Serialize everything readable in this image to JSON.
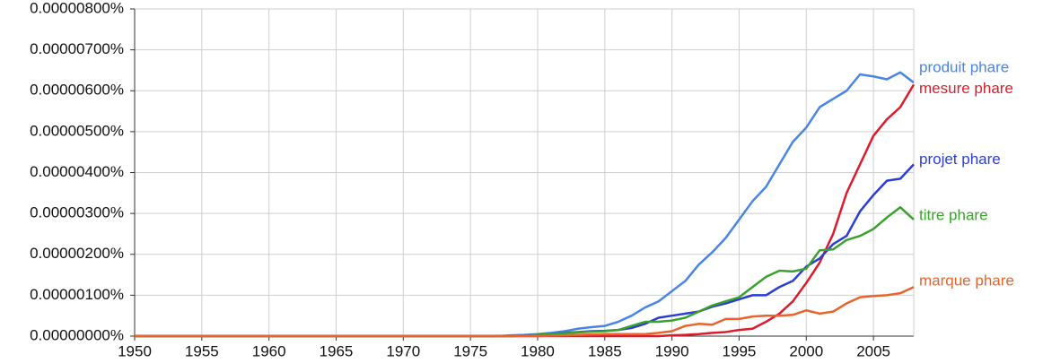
{
  "chart_data": {
    "type": "line",
    "x": [
      1950,
      1976,
      1977,
      1978,
      1979,
      1980,
      1981,
      1982,
      1983,
      1984,
      1985,
      1986,
      1987,
      1988,
      1989,
      1990,
      1991,
      1992,
      1993,
      1994,
      1995,
      1996,
      1997,
      1998,
      1999,
      2000,
      2001,
      2002,
      2003,
      2004,
      2005,
      2006,
      2007,
      2008
    ],
    "xlim": [
      1950,
      2008
    ],
    "xticks": [
      1950,
      1955,
      1960,
      1965,
      1970,
      1975,
      1980,
      1985,
      1990,
      1995,
      2000,
      2005
    ],
    "ylim": [
      0,
      8e-06
    ],
    "yticks": [
      {
        "value": 0,
        "label": "0.00000000%"
      },
      {
        "value": 1e-06,
        "label": "0.00000100%"
      },
      {
        "value": 2e-06,
        "label": "0.00000200%"
      },
      {
        "value": 3e-06,
        "label": "0.00000300%"
      },
      {
        "value": 4e-06,
        "label": "0.00000400%"
      },
      {
        "value": 5e-06,
        "label": "0.00000500%"
      },
      {
        "value": 6e-06,
        "label": "0.00000600%"
      },
      {
        "value": 7e-06,
        "label": "0.00000700%"
      },
      {
        "value": 8e-06,
        "label": "0.00000800%"
      }
    ],
    "grid": true,
    "series": [
      {
        "name": "produit phare",
        "color": "#4a84e6",
        "values": [
          0,
          0,
          0,
          2e-08,
          3e-08,
          5e-08,
          8e-08,
          1.2e-07,
          1.8e-07,
          2.2e-07,
          2.5e-07,
          3.5e-07,
          5e-07,
          7e-07,
          8.5e-07,
          1.1e-06,
          1.35e-06,
          1.75e-06,
          2.05e-06,
          2.4e-06,
          2.85e-06,
          3.3e-06,
          3.65e-06,
          4.2e-06,
          4.75e-06,
          5.1e-06,
          5.6e-06,
          5.8e-06,
          6e-06,
          6.4e-06,
          6.35e-06,
          6.28e-06,
          6.45e-06,
          6.2e-06
        ]
      },
      {
        "name": "mesure phare",
        "color": "#dc1c2c",
        "values": [
          0,
          0,
          0,
          0,
          0,
          0,
          0,
          0,
          0,
          0,
          0,
          0,
          0,
          0,
          0,
          2e-08,
          3e-08,
          5e-08,
          8e-08,
          1e-07,
          1.5e-07,
          1.8e-07,
          3.5e-07,
          5.5e-07,
          8.5e-07,
          1.3e-06,
          1.8e-06,
          2.5e-06,
          3.5e-06,
          4.2e-06,
          4.9e-06,
          5.3e-06,
          5.6e-06,
          6.15e-06
        ]
      },
      {
        "name": "projet phare",
        "color": "#2b3dd4",
        "values": [
          0,
          0,
          0,
          0,
          1e-08,
          3e-08,
          5e-08,
          8e-08,
          1e-07,
          1.2e-07,
          1.3e-07,
          1.5e-07,
          2e-07,
          3e-07,
          4.5e-07,
          5e-07,
          5.5e-07,
          6e-07,
          7.2e-07,
          8e-07,
          9e-07,
          1e-06,
          1e-06,
          1.2e-06,
          1.35e-06,
          1.7e-06,
          1.9e-06,
          2.25e-06,
          2.45e-06,
          3.05e-06,
          3.45e-06,
          3.8e-06,
          3.85e-06,
          4.2e-06
        ]
      },
      {
        "name": "titre phare",
        "color": "#3aa12e",
        "values": [
          0,
          0,
          0,
          0,
          1e-08,
          3e-08,
          5e-08,
          7e-08,
          9e-08,
          1.1e-07,
          1.2e-07,
          1.5e-07,
          2.5e-07,
          3.5e-07,
          3.5e-07,
          3.8e-07,
          4.5e-07,
          6e-07,
          7.5e-07,
          8.5e-07,
          9.5e-07,
          1.2e-06,
          1.45e-06,
          1.6e-06,
          1.58e-06,
          1.65e-06,
          2.1e-06,
          2.12e-06,
          2.35e-06,
          2.45e-06,
          2.62e-06,
          2.9e-06,
          3.15e-06,
          2.85e-06
        ]
      },
      {
        "name": "marque phare",
        "color": "#e8642c",
        "values": [
          0,
          0,
          0,
          0,
          0,
          0,
          1e-08,
          2e-08,
          3e-08,
          4e-08,
          5e-08,
          5e-08,
          5e-08,
          5e-08,
          8e-08,
          1.2e-07,
          2.5e-07,
          3e-07,
          2.8e-07,
          4.2e-07,
          4.2e-07,
          4.8e-07,
          5e-07,
          5e-07,
          5.2e-07,
          6.3e-07,
          5.5e-07,
          6e-07,
          8e-07,
          9.5e-07,
          9.8e-07,
          1e-06,
          1.05e-06,
          1.2e-06
        ]
      }
    ]
  }
}
